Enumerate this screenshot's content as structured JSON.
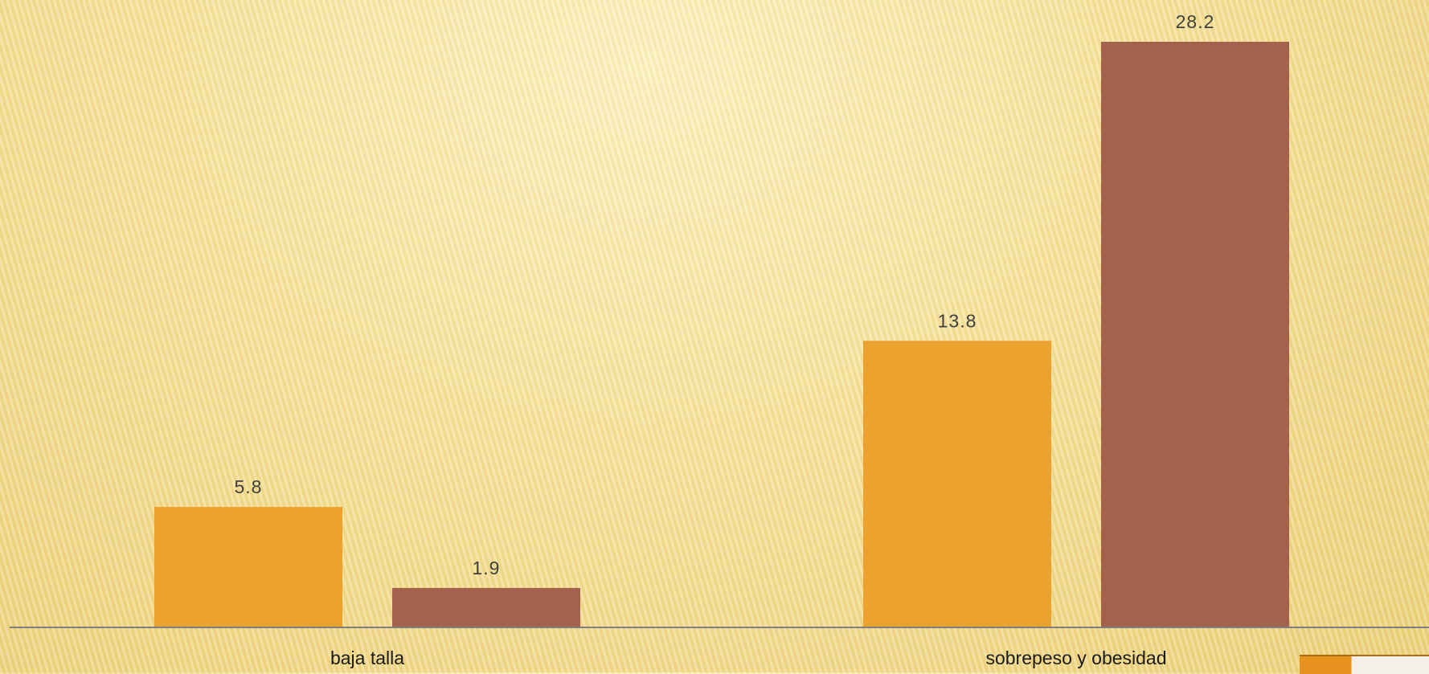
{
  "chart_data": {
    "type": "bar",
    "categories": [
      "baja talla",
      "sobrepeso y obesidad"
    ],
    "series": [
      {
        "values": [
          5.8,
          13.8
        ],
        "color": "#eca22f"
      },
      {
        "values": [
          1.9,
          28.2
        ],
        "color": "#a4624d"
      }
    ],
    "ylim": [
      0,
      28.2
    ],
    "grid": false,
    "legend": "none",
    "axis_color": "#7f7f7f"
  }
}
